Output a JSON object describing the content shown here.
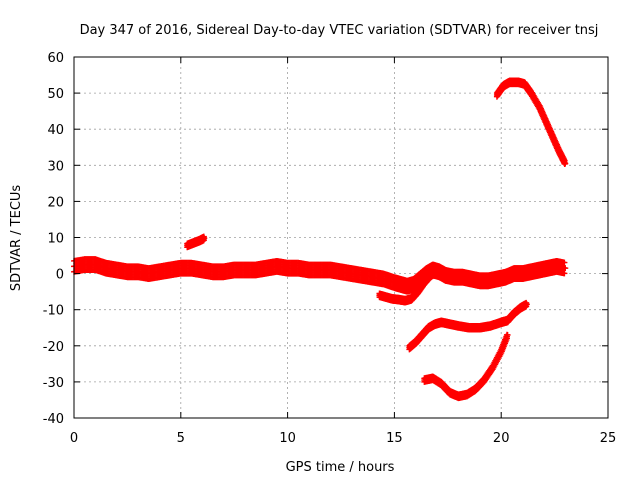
{
  "chart_data": {
    "type": "scatter",
    "title": "Day 347 of 2016, Sidereal Day-to-day VTEC variation (SDTVAR) for receiver tnsj",
    "xlabel": "GPS time / hours",
    "ylabel": "SDTVAR / TECUs",
    "xlim": [
      0,
      25
    ],
    "ylim": [
      -40,
      60
    ],
    "xticks": [
      0,
      5,
      10,
      15,
      20,
      25
    ],
    "yticks": [
      -40,
      -30,
      -20,
      -10,
      0,
      10,
      20,
      30,
      40,
      50,
      60
    ],
    "grid": true,
    "marker": "plus",
    "color": "#ff0000",
    "series": [
      {
        "name": "main-band",
        "band_width": 3,
        "x": [
          0.0,
          0.5,
          1.0,
          1.5,
          2.0,
          2.5,
          3.0,
          3.5,
          4.0,
          4.5,
          5.0,
          5.5,
          6.0,
          6.5,
          7.0,
          7.5,
          8.0,
          8.5,
          9.0,
          9.5,
          10.0,
          10.5,
          11.0,
          11.5,
          12.0,
          12.5,
          13.0,
          13.5,
          14.0,
          14.5,
          15.0,
          15.3,
          15.6,
          15.9,
          16.2,
          16.5,
          16.8,
          17.1,
          17.4,
          17.8,
          18.2,
          18.6,
          19.0,
          19.4,
          19.8,
          20.2,
          20.6,
          21.0,
          21.4,
          21.8,
          22.2,
          22.6,
          23.0
        ],
        "y": [
          2.0,
          2.5,
          2.5,
          1.5,
          1.0,
          0.5,
          0.5,
          0.0,
          0.5,
          1.0,
          1.5,
          1.5,
          1.0,
          0.5,
          0.5,
          1.0,
          1.0,
          1.0,
          1.5,
          2.0,
          1.5,
          1.5,
          1.0,
          1.0,
          1.0,
          0.5,
          0.0,
          -0.5,
          -1.0,
          -1.5,
          -2.5,
          -3.0,
          -3.5,
          -3.0,
          -1.5,
          0.0,
          1.0,
          0.5,
          -0.5,
          -1.0,
          -1.0,
          -1.5,
          -2.0,
          -2.0,
          -1.5,
          -1.0,
          0.0,
          0.0,
          0.5,
          1.0,
          1.5,
          2.0,
          1.5
        ]
      },
      {
        "name": "lower-branch-15h",
        "band_width": 1,
        "x": [
          14.3,
          14.6,
          14.9,
          15.2,
          15.5,
          15.8,
          16.1,
          16.4,
          16.7,
          17.0
        ],
        "y": [
          -6.0,
          -6.5,
          -7.0,
          -7.2,
          -7.5,
          -7.0,
          -5.0,
          -2.5,
          -0.5,
          0.5
        ]
      },
      {
        "name": "segment-6h",
        "band_width": 1,
        "x": [
          5.3,
          5.6,
          5.9,
          6.1
        ],
        "y": [
          7.8,
          8.5,
          9.2,
          9.8
        ]
      },
      {
        "name": "upper-arc-21h",
        "band_width": 1,
        "x": [
          19.8,
          20.1,
          20.4,
          20.8,
          21.1,
          21.4,
          21.8,
          22.1,
          22.4,
          22.7,
          23.0
        ],
        "y": [
          49.5,
          52.0,
          53.0,
          53.0,
          52.5,
          50.0,
          46.0,
          42.0,
          38.0,
          34.0,
          30.5
        ]
      },
      {
        "name": "middle-curve-minus15",
        "band_width": 1,
        "x": [
          15.7,
          16.0,
          16.3,
          16.6,
          16.9,
          17.2,
          17.6,
          18.0,
          18.5,
          19.0,
          19.5,
          20.0,
          20.3,
          20.6,
          20.9,
          21.2
        ],
        "y": [
          -20.5,
          -19.0,
          -17.0,
          -15.0,
          -14.0,
          -13.5,
          -14.0,
          -14.5,
          -15.0,
          -15.0,
          -14.5,
          -13.5,
          -13.0,
          -11.0,
          -9.5,
          -8.5
        ]
      },
      {
        "name": "bottom-curve-minus30",
        "band_width": 1,
        "x": [
          16.4,
          16.8,
          17.2,
          17.6,
          18.0,
          18.4,
          18.8,
          19.2,
          19.6,
          20.0,
          20.3
        ],
        "y": [
          -29.5,
          -29.0,
          -30.5,
          -33.0,
          -34.0,
          -33.5,
          -32.0,
          -29.5,
          -26.0,
          -21.5,
          -17.0
        ]
      }
    ]
  }
}
